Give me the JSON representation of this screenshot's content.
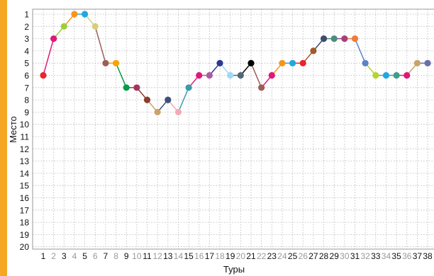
{
  "chart_data": {
    "type": "line",
    "xlabel": "Туры",
    "ylabel": "Место",
    "x": [
      1,
      2,
      3,
      4,
      5,
      6,
      7,
      8,
      9,
      10,
      11,
      12,
      13,
      14,
      15,
      16,
      17,
      18,
      19,
      20,
      21,
      22,
      23,
      24,
      25,
      26,
      27,
      28,
      29,
      30,
      31,
      32,
      33,
      34,
      35,
      36,
      37,
      38
    ],
    "y": [
      6,
      3,
      2,
      1,
      1,
      2,
      5,
      5,
      7,
      7,
      8,
      9,
      8,
      9,
      7,
      6,
      6,
      5,
      6,
      6,
      5,
      7,
      6,
      5,
      5,
      5,
      4,
      3,
      3,
      3,
      3,
      5,
      6,
      6,
      6,
      6,
      5,
      5
    ],
    "xlim": [
      1,
      38
    ],
    "ylim": [
      1,
      20
    ],
    "y_inverted": true,
    "x_ticks": [
      1,
      2,
      3,
      4,
      5,
      6,
      7,
      8,
      9,
      10,
      11,
      12,
      13,
      14,
      15,
      16,
      17,
      18,
      19,
      20,
      21,
      22,
      23,
      24,
      25,
      26,
      27,
      28,
      29,
      30,
      31,
      32,
      33,
      34,
      35,
      36,
      37,
      38
    ],
    "y_ticks": [
      1,
      2,
      3,
      4,
      5,
      6,
      7,
      8,
      9,
      10,
      11,
      12,
      13,
      14,
      15,
      16,
      17,
      18,
      19,
      20
    ],
    "grid": true,
    "point_colors": [
      "#e8262b",
      "#e0187a",
      "#9ccf3b",
      "#f7941d",
      "#1fa8e0",
      "#d4d07a",
      "#9b5f5a",
      "#f7a400",
      "#0a9b47",
      "#a4365a",
      "#8c3c2c",
      "#c9a46a",
      "#3c4f7c",
      "#f5a9b8",
      "#3b9aa8",
      "#e0187a",
      "#b05aa0",
      "#2c3990",
      "#9fd8f3",
      "#4f6a7a",
      "#000000",
      "#9b5f5a",
      "#e0187a",
      "#f7941d",
      "#1fa8e0",
      "#e8262b",
      "#a25a2c",
      "#3d4d6c",
      "#4c8c7c",
      "#a6407c",
      "#f07b3a",
      "#5b84c4",
      "#b8d432",
      "#1fa8e0",
      "#3aa08a",
      "#e0187a",
      "#c9a46a",
      "#6a6fa8"
    ],
    "x_tick_colors": [
      "#111",
      "#999",
      "#111",
      "#999",
      "#111",
      "#999",
      "#111",
      "#999",
      "#111",
      "#999",
      "#111",
      "#999",
      "#111",
      "#999",
      "#111",
      "#999",
      "#111",
      "#999",
      "#111",
      "#999",
      "#111",
      "#999",
      "#111",
      "#999",
      "#111",
      "#999",
      "#111",
      "#111",
      "#111",
      "#999",
      "#111",
      "#999",
      "#111",
      "#999",
      "#111",
      "#999",
      "#111",
      "#111"
    ],
    "accent_color": "#f5a623"
  }
}
